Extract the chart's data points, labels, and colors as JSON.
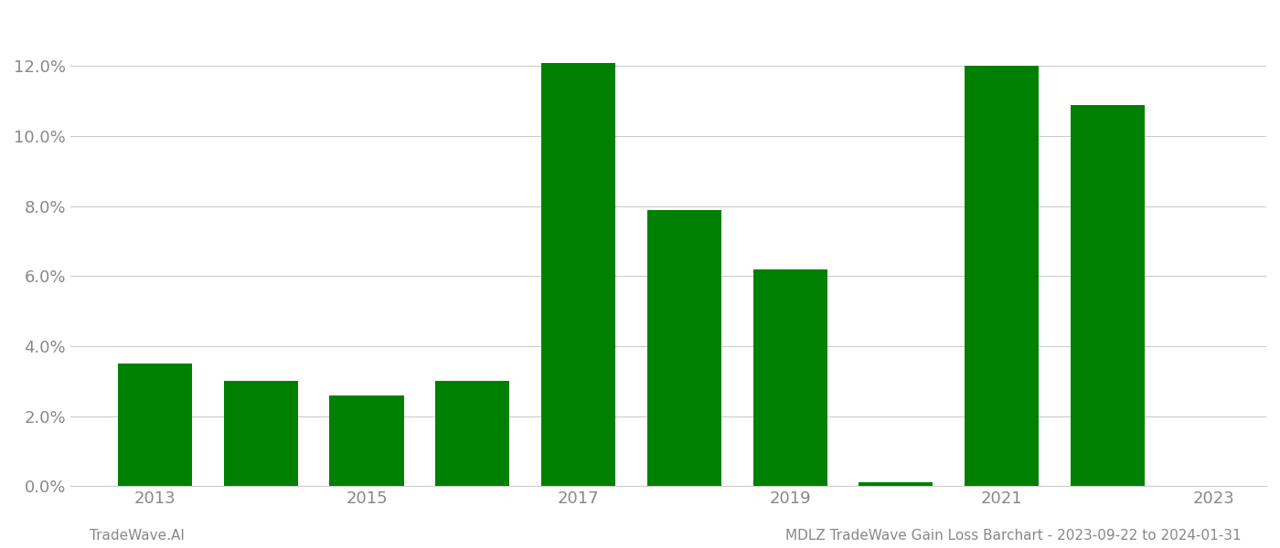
{
  "years": [
    2013,
    2014,
    2015,
    2016,
    2017,
    2018,
    2019,
    2020,
    2021,
    2022
  ],
  "values": [
    0.035,
    0.03,
    0.026,
    0.03,
    0.121,
    0.079,
    0.062,
    0.001,
    0.12,
    0.109
  ],
  "bar_color": "#008000",
  "background_color": "#ffffff",
  "grid_color": "#cccccc",
  "ylim": [
    0,
    0.135
  ],
  "ytick_step": 0.02,
  "title_text": "MDLZ TradeWave Gain Loss Barchart - 2023-09-22 to 2024-01-31",
  "watermark_text": "TradeWave.AI",
  "title_fontsize": 11,
  "watermark_fontsize": 11,
  "tick_label_color": "#888888",
  "title_color": "#888888",
  "watermark_color": "#888888",
  "display_years": [
    2013,
    2015,
    2017,
    2019,
    2021,
    2023
  ],
  "bar_width": 0.7
}
